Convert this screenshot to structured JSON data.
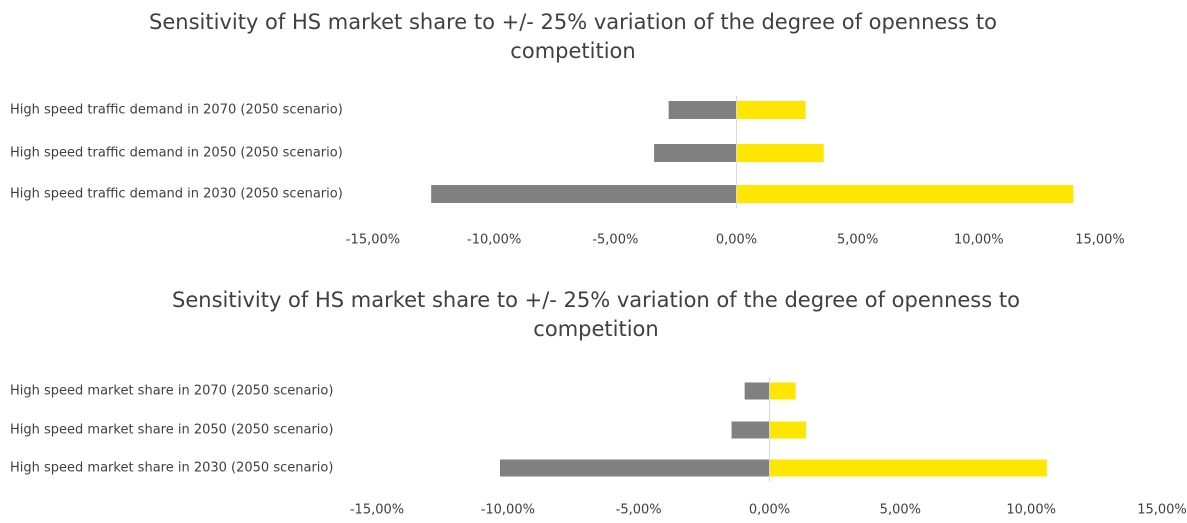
{
  "chart_data": [
    {
      "type": "bar",
      "orientation": "horizontal",
      "title": "Sensitivity of HS market share to +/- 25% variation of the degree of openness to competition",
      "categories": [
        "High speed traffic demand in 2070 (2050 scenario)",
        "High speed traffic demand in 2050 (2050 scenario)",
        "High speed traffic demand in 2030 (2050 scenario)"
      ],
      "series": [
        {
          "color": "#808080",
          "values": [
            -2.8,
            -3.4,
            -12.6
          ]
        },
        {
          "color": "#ffe600",
          "values": [
            2.85,
            3.6,
            13.9
          ]
        }
      ],
      "xlim": [
        -15,
        15
      ],
      "xticks": [
        {
          "value": -15,
          "label": "-15,00%"
        },
        {
          "value": -10,
          "label": "-10,00%"
        },
        {
          "value": -5,
          "label": "-5,00%"
        },
        {
          "value": 0,
          "label": "0,00%"
        },
        {
          "value": 5,
          "label": "5,00%"
        },
        {
          "value": 10,
          "label": "10,00%"
        },
        {
          "value": 15,
          "label": "15,00%"
        }
      ]
    },
    {
      "type": "bar",
      "orientation": "horizontal",
      "title": "Sensitivity of HS market share to +/- 25% variation of the degree of openness to competition",
      "categories": [
        "High speed market share in 2070 (2050 scenario)",
        "High speed market share in 2050 (2050 scenario)",
        "High speed market share in 2030 (2050 scenario)"
      ],
      "series": [
        {
          "color": "#808080",
          "values": [
            -0.95,
            -1.45,
            -10.3
          ]
        },
        {
          "color": "#ffe600",
          "values": [
            1.0,
            1.4,
            10.6
          ]
        }
      ],
      "xlim": [
        -15,
        15
      ],
      "xticks": [
        {
          "value": -15,
          "label": "-15,00%"
        },
        {
          "value": -10,
          "label": "-10,00%"
        },
        {
          "value": -5,
          "label": "-5,00%"
        },
        {
          "value": 0,
          "label": "0,00%"
        },
        {
          "value": 5,
          "label": "5,00%"
        },
        {
          "value": 10,
          "label": "10,00%"
        },
        {
          "value": 15,
          "label": "15,00%"
        }
      ]
    }
  ]
}
